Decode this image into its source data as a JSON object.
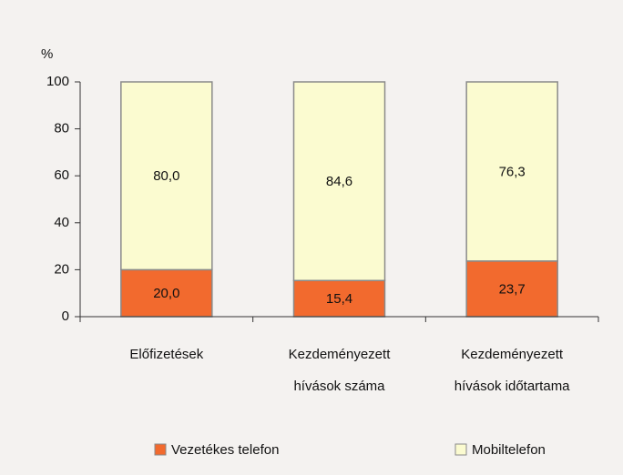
{
  "chart_data": {
    "type": "stacked_bar",
    "ylabel": "%",
    "categories": [
      [
        "Előfizetések"
      ],
      [
        "Kezdeményezett",
        "hívások száma"
      ],
      [
        "Kezdeményezett",
        "hívások időtartama"
      ]
    ],
    "series": [
      {
        "name": "Vezetékes telefon",
        "color": "#f26a2e",
        "values": [
          20.0,
          15.4,
          23.7
        ],
        "value_labels": [
          "20,0",
          "15,4",
          "23,7"
        ]
      },
      {
        "name": "Mobiltelefon",
        "color": "#fbfbd0",
        "values": [
          80.0,
          84.6,
          76.3
        ],
        "value_labels": [
          "80,0",
          "84,6",
          "76,3"
        ]
      }
    ],
    "ylim": [
      0,
      100
    ],
    "yticks": [
      0,
      20,
      40,
      60,
      80,
      100
    ],
    "legend": "bottom"
  }
}
